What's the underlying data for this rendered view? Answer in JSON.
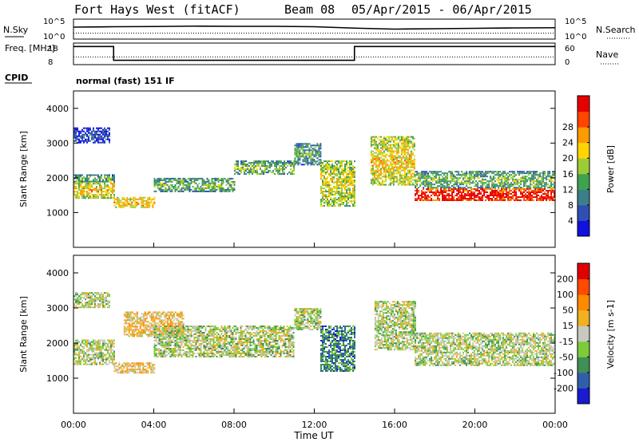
{
  "header": {
    "station": "Fort Hays West (fitACF)",
    "beam": "Beam 08",
    "dates": "05/Apr/2015 - 06/Apr/2015"
  },
  "colors": {
    "power": [
      "#1010e0",
      "#2e4fb4",
      "#3c7f8a",
      "#3fa24f",
      "#9ccc35",
      "#ffd400",
      "#ff9a00",
      "#ff4500",
      "#e60000"
    ],
    "velocity": [
      "#1a1ad0",
      "#2f5fa8",
      "#3f8f56",
      "#7ccc3a",
      "#c8c8c0",
      "#f0b020",
      "#ff8a00",
      "#ff4a00",
      "#e00000"
    ]
  },
  "chart_data": [
    {
      "type": "line",
      "panel": "noise",
      "left_label": "N.Sky",
      "right_label": "N.Search",
      "left_ticks": [
        "10^5",
        "10^0"
      ],
      "right_ticks": [
        "10^5",
        "10^0"
      ],
      "x": [
        0,
        2,
        4,
        6,
        8,
        10,
        12,
        14,
        16,
        18,
        20,
        22,
        24
      ],
      "series": [
        {
          "values": [
            0.6,
            0.62,
            0.63,
            0.65,
            0.64,
            0.64,
            0.62,
            0.55,
            0.5,
            0.52,
            0.54,
            0.56,
            0.57
          ]
        },
        {
          "values": [
            0.3,
            0.3,
            0.3,
            0.3,
            0.3,
            0.3,
            0.3,
            0.3,
            0.3,
            0.3,
            0.3,
            0.3,
            0.3
          ]
        }
      ]
    },
    {
      "type": "line",
      "panel": "frequency",
      "left_label": "Freq. [MHz]",
      "right_label": "Nave",
      "left_ticks": [
        18,
        8
      ],
      "right_ticks": [
        60,
        0
      ],
      "x": [
        0,
        2,
        2,
        14,
        14,
        24
      ],
      "series": [
        {
          "values": [
            17,
            17,
            9.5,
            9.5,
            17,
            17
          ]
        },
        {
          "values": [
            20,
            20,
            20,
            20,
            20,
            20
          ]
        }
      ]
    },
    {
      "type": "text",
      "panel": "cpid",
      "label": "CPID",
      "value": "normal (fast) 151 IF"
    },
    {
      "type": "heatmap",
      "panel": "power",
      "ylabel": "Slant Range [km]",
      "ylim": [
        0,
        4500
      ],
      "yticks": [
        1000,
        2000,
        3000,
        4000
      ],
      "xlim": [
        0,
        24
      ],
      "colorbar_label": "Power [dB]",
      "colorbar_ticks": [
        4,
        8,
        12,
        16,
        20,
        24,
        28
      ],
      "bands": [
        {
          "t0": 0.0,
          "t1": 2.0,
          "r0": 1400,
          "r1": 1900,
          "level": 0.55
        },
        {
          "t0": 0.0,
          "t1": 2.0,
          "r0": 1900,
          "r1": 2100,
          "level": 0.3
        },
        {
          "t0": 0.0,
          "t1": 1.8,
          "r0": 3000,
          "r1": 3450,
          "level": 0.1
        },
        {
          "t0": 2.0,
          "t1": 4.0,
          "r0": 1150,
          "r1": 1450,
          "level": 0.6
        },
        {
          "t0": 4.0,
          "t1": 8.0,
          "r0": 1600,
          "r1": 2000,
          "level": 0.35
        },
        {
          "t0": 8.0,
          "t1": 11.0,
          "r0": 2100,
          "r1": 2500,
          "level": 0.35
        },
        {
          "t0": 11.0,
          "t1": 12.3,
          "r0": 2400,
          "r1": 3000,
          "level": 0.3
        },
        {
          "t0": 12.3,
          "t1": 14.0,
          "r0": 1200,
          "r1": 2500,
          "level": 0.5
        },
        {
          "t0": 14.8,
          "t1": 17.0,
          "r0": 1800,
          "r1": 3200,
          "level": 0.55
        },
        {
          "t0": 17.0,
          "t1": 24.0,
          "r0": 1350,
          "r1": 1700,
          "level": 0.9
        },
        {
          "t0": 17.0,
          "t1": 24.0,
          "r0": 1700,
          "r1": 2200,
          "level": 0.35
        }
      ]
    },
    {
      "type": "heatmap",
      "panel": "velocity",
      "ylabel": "Slant Range [km]",
      "ylim": [
        0,
        4500
      ],
      "yticks": [
        1000,
        2000,
        3000,
        4000
      ],
      "xlim": [
        0,
        24
      ],
      "xticks": [
        "00:00",
        "04:00",
        "08:00",
        "12:00",
        "16:00",
        "20:00",
        "00:00"
      ],
      "xlabel": "Time UT",
      "colorbar_label": "Velocity [m s-1]",
      "colorbar_ticks": [
        200,
        100,
        50,
        15,
        -15,
        -50,
        -100,
        -200
      ],
      "bands": [
        {
          "t0": 0.0,
          "t1": 2.0,
          "r0": 1400,
          "r1": 2100,
          "level": 0.45
        },
        {
          "t0": 0.0,
          "t1": 1.8,
          "r0": 3000,
          "r1": 3450,
          "level": 0.45
        },
        {
          "t0": 2.0,
          "t1": 4.0,
          "r0": 1150,
          "r1": 1450,
          "level": 0.6
        },
        {
          "t0": 2.5,
          "t1": 5.5,
          "r0": 2200,
          "r1": 2900,
          "level": 0.6
        },
        {
          "t0": 4.0,
          "t1": 11.0,
          "r0": 1600,
          "r1": 2500,
          "level": 0.45
        },
        {
          "t0": 11.0,
          "t1": 12.3,
          "r0": 2400,
          "r1": 3000,
          "level": 0.45
        },
        {
          "t0": 12.3,
          "t1": 14.0,
          "r0": 1200,
          "r1": 2500,
          "level": 0.25
        },
        {
          "t0": 15.0,
          "t1": 17.0,
          "r0": 1800,
          "r1": 3200,
          "level": 0.45
        },
        {
          "t0": 17.0,
          "t1": 24.0,
          "r0": 1350,
          "r1": 2300,
          "level": 0.45
        }
      ]
    }
  ]
}
